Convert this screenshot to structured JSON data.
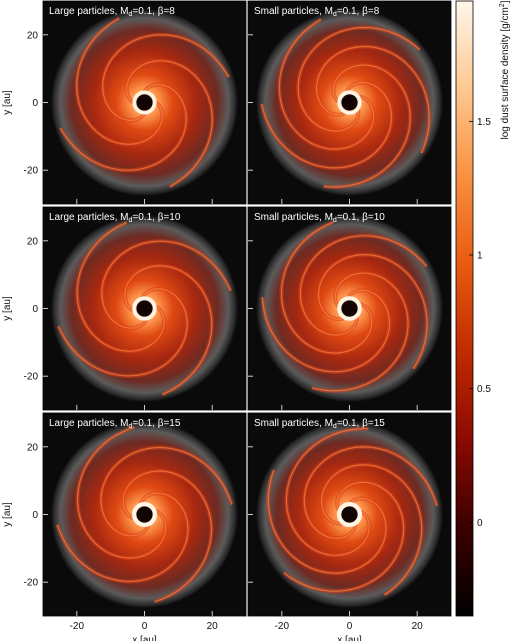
{
  "figure": {
    "panels": [
      {
        "row": 0,
        "col": 0,
        "title_prefix": "Large particles, M",
        "title_sub": "d",
        "title_suffix": "=0.1, β=8",
        "peak": 0.85,
        "ring": 0.55
      },
      {
        "row": 0,
        "col": 1,
        "title_prefix": "Small particles, M",
        "title_sub": "d",
        "title_suffix": "=0.1, β=8",
        "peak": 0.95,
        "ring": 0.65
      },
      {
        "row": 1,
        "col": 0,
        "title_prefix": "Large particles, M",
        "title_sub": "d",
        "title_suffix": "=0.1, β=10",
        "peak": 0.9,
        "ring": 0.7
      },
      {
        "row": 1,
        "col": 1,
        "title_prefix": "Small particles, M",
        "title_sub": "d",
        "title_suffix": "=0.1, β=10",
        "peak": 0.95,
        "ring": 0.75
      },
      {
        "row": 2,
        "col": 0,
        "title_prefix": "Large particles, M",
        "title_sub": "d",
        "title_suffix": "=0.1, β=15",
        "peak": 0.95,
        "ring": 0.95
      },
      {
        "row": 2,
        "col": 1,
        "title_prefix": "Small particles, M",
        "title_sub": "d",
        "title_suffix": "=0.1, β=15",
        "peak": 1.0,
        "ring": 1.0
      }
    ],
    "y_axis": {
      "label": "y [au]",
      "ticks": [
        "20",
        "0",
        "-20"
      ],
      "tick_values": [
        20,
        0,
        -20
      ]
    },
    "x_axis": {
      "label": "x [au]",
      "ticks": [
        "-20",
        "0",
        "20"
      ],
      "tick_values": [
        -20,
        0,
        20
      ]
    },
    "colorbar": {
      "label_main": "log dust surface density [g/cm",
      "label_sup": "2",
      "label_end": "]",
      "ticks": [
        "1.5",
        "1",
        "0.5",
        "0"
      ],
      "tick_values": [
        1.5,
        1.0,
        0.5,
        0.0
      ],
      "range": [
        -0.35,
        1.95
      ],
      "stops": [
        "#000000",
        "#3a0000",
        "#8b0a00",
        "#c02a00",
        "#e85a10",
        "#f99040",
        "#ffc890",
        "#fff6ea"
      ]
    },
    "range_au": [
      -30,
      30
    ]
  }
}
